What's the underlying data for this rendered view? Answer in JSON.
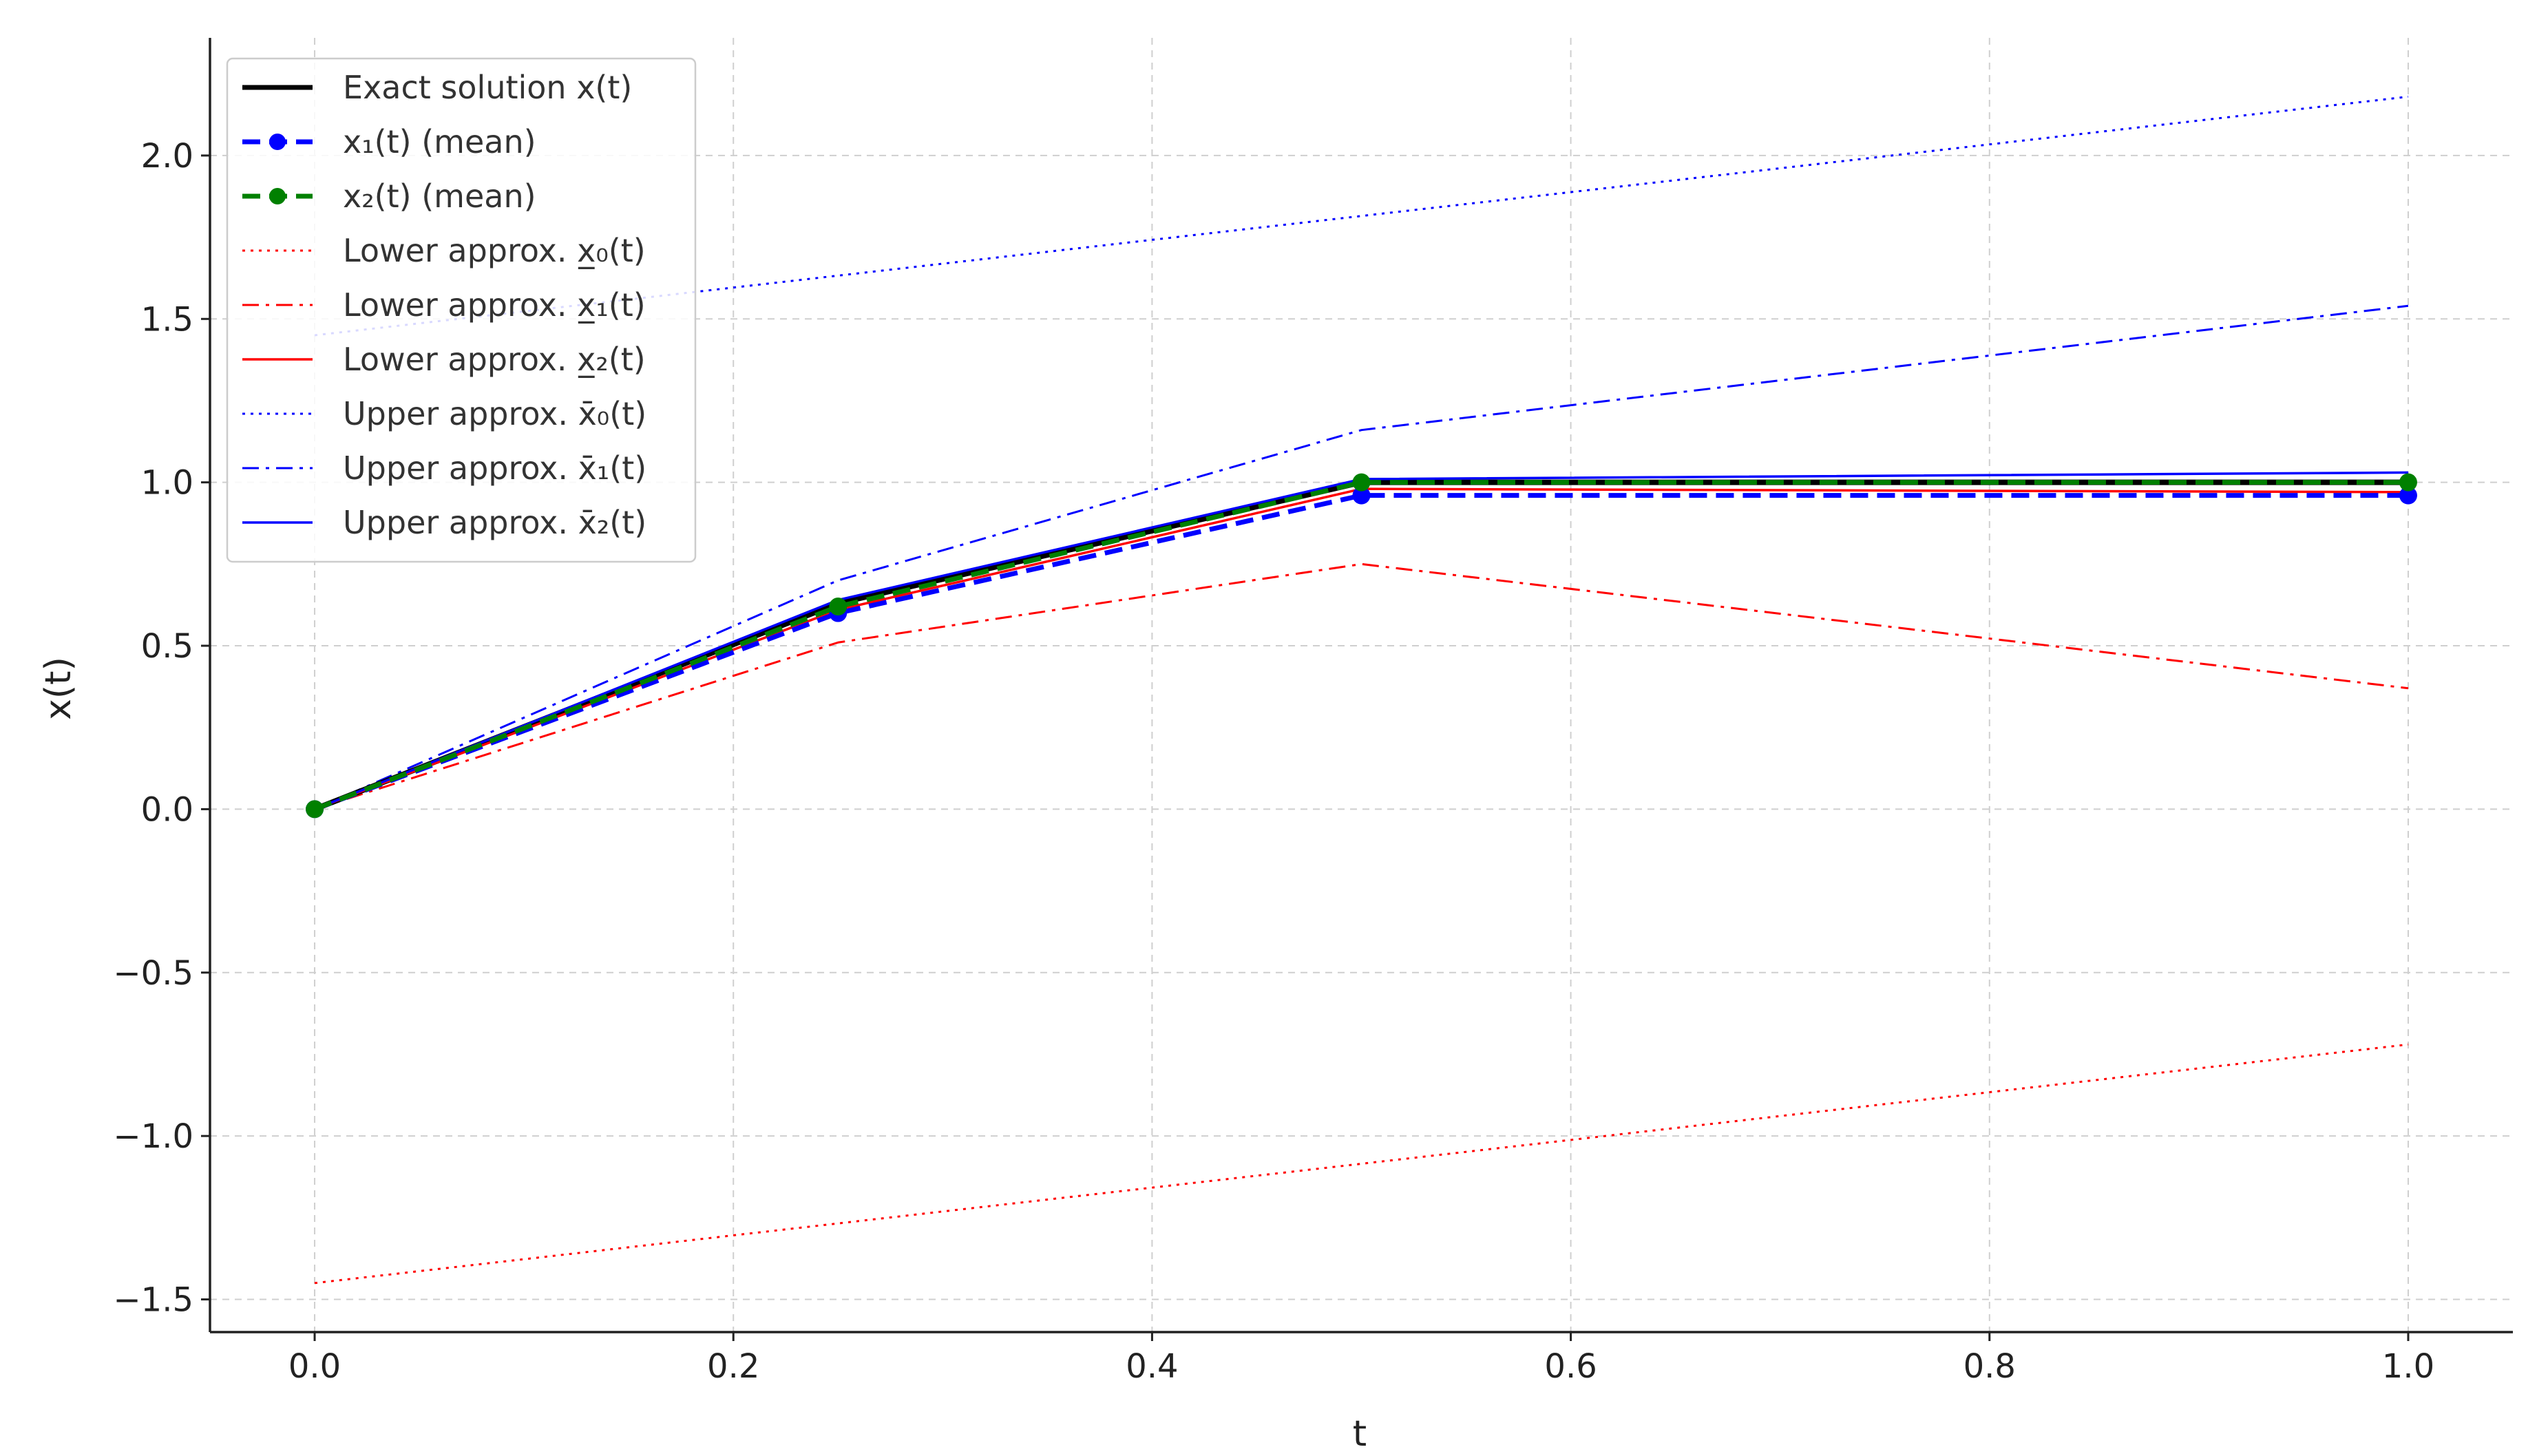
{
  "chart_data": {
    "type": "line",
    "xlabel": "t",
    "ylabel": "x(t)",
    "xlim": [
      -0.05,
      1.05
    ],
    "ylim": [
      -1.6,
      2.36
    ],
    "xticks": [
      0.0,
      0.2,
      0.4,
      0.6,
      0.8,
      1.0
    ],
    "xtick_labels": [
      "0.0",
      "0.2",
      "0.4",
      "0.6",
      "0.8",
      "1.0"
    ],
    "yticks": [
      -1.5,
      -1.0,
      -0.5,
      0.0,
      0.5,
      1.0,
      1.5,
      2.0
    ],
    "ytick_labels": [
      "−1.5",
      "−1.0",
      "−0.5",
      "0.0",
      "0.5",
      "1.0",
      "1.5",
      "2.0"
    ],
    "grid": true,
    "legend_position": "top-left",
    "series": [
      {
        "name": "Upper approx. x̄₀(t)",
        "color": "#0000ff",
        "style": "dotted",
        "width": 3,
        "marker": false,
        "x": [
          0.0,
          1.0
        ],
        "y": [
          1.45,
          2.18
        ]
      },
      {
        "name": "Lower approx. x̲₀(t)",
        "color": "#ff0000",
        "style": "dotted",
        "width": 3,
        "marker": false,
        "x": [
          0.0,
          1.0
        ],
        "y": [
          -1.45,
          -0.72
        ]
      },
      {
        "name": "Upper approx. x̄₁(t)",
        "color": "#0000ff",
        "style": "dashdot",
        "width": 3,
        "marker": false,
        "x": [
          0.0,
          0.25,
          0.5,
          1.0
        ],
        "y": [
          0.0,
          0.7,
          1.16,
          1.54
        ]
      },
      {
        "name": "Lower approx. x̲₁(t)",
        "color": "#ff0000",
        "style": "dashdot",
        "width": 3,
        "marker": false,
        "x": [
          0.0,
          0.25,
          0.5,
          1.0
        ],
        "y": [
          0.0,
          0.51,
          0.75,
          0.37
        ]
      },
      {
        "name": "Exact solution x(t)",
        "color": "#000000",
        "style": "solid",
        "width": 8,
        "marker": false,
        "x": [
          0.0,
          0.25,
          0.5,
          1.0
        ],
        "y": [
          0.0,
          0.63,
          1.0,
          1.0
        ]
      },
      {
        "name": "Lower approx. x̲₂(t)",
        "color": "#ff0000",
        "style": "solid",
        "width": 3.5,
        "marker": false,
        "x": [
          0.0,
          0.25,
          0.5,
          1.0
        ],
        "y": [
          0.0,
          0.61,
          0.98,
          0.97
        ]
      },
      {
        "name": "Upper approx. x̄₂(t)",
        "color": "#0000ff",
        "style": "solid",
        "width": 3.5,
        "marker": false,
        "x": [
          0.0,
          0.25,
          0.5,
          1.0
        ],
        "y": [
          0.0,
          0.64,
          1.01,
          1.03
        ]
      },
      {
        "name": "x₁(t) (mean)",
        "color": "#0000ff",
        "style": "dashed",
        "width": 7,
        "marker": true,
        "x": [
          0.0,
          0.25,
          0.5,
          1.0
        ],
        "y": [
          0.0,
          0.6,
          0.96,
          0.96
        ]
      },
      {
        "name": "x₂(t) (mean)",
        "color": "#008000",
        "style": "dashed",
        "width": 7,
        "marker": true,
        "x": [
          0.0,
          0.25,
          0.5,
          1.0
        ],
        "y": [
          0.0,
          0.62,
          1.0,
          1.0
        ]
      }
    ],
    "legend_order": [
      "Exact solution x(t)",
      "x₁(t) (mean)",
      "x₂(t) (mean)",
      "Lower approx. x̲₀(t)",
      "Lower approx. x̲₁(t)",
      "Lower approx. x̲₂(t)",
      "Upper approx. x̄₀(t)",
      "Upper approx. x̄₁(t)",
      "Upper approx. x̄₂(t)"
    ]
  }
}
